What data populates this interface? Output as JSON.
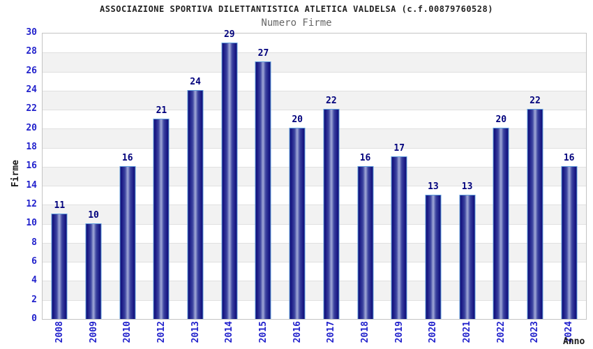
{
  "header": {
    "title": "ASSOCIAZIONE SPORTIVA DILETTANTISTICA ATLETICA VALDELSA (c.f.00879760528)",
    "subtitle": "Numero Firme"
  },
  "chart_data": {
    "type": "bar",
    "title": "ASSOCIAZIONE SPORTIVA DILETTANTISTICA ATLETICA VALDELSA (c.f.00879760528)",
    "subtitle": "Numero Firme",
    "categories": [
      "2008",
      "2009",
      "2010",
      "2012",
      "2013",
      "2014",
      "2015",
      "2016",
      "2017",
      "2018",
      "2019",
      "2020",
      "2021",
      "2022",
      "2023",
      "2024"
    ],
    "values": [
      11,
      10,
      16,
      21,
      24,
      29,
      27,
      20,
      22,
      16,
      17,
      13,
      13,
      20,
      22,
      16
    ],
    "xlabel": "Anno",
    "ylabel": "Firme",
    "ylim": [
      0,
      30
    ],
    "ytick_step": 2,
    "y_ticks": [
      0,
      2,
      4,
      6,
      8,
      10,
      12,
      14,
      16,
      18,
      20,
      22,
      24,
      26,
      28,
      30
    ],
    "grid": "horizontal bands alternating white and light gray every 2 units, thin gridline at each even value",
    "legend": "none",
    "colors": {
      "bar_edge_dark": "#0e0e76",
      "bar_center_light": "#a2aad8",
      "bar_outline": "#5f9ddc",
      "value_label": "#00007c",
      "tick_label": "#2222cc",
      "axis_title": "#1a1a1a",
      "band_alt": "#f2f2f2",
      "gridline": "#e0e0e0",
      "frame_border": "#c4c4c4",
      "title_color": "#222222",
      "subtitle_color": "#666666"
    }
  }
}
